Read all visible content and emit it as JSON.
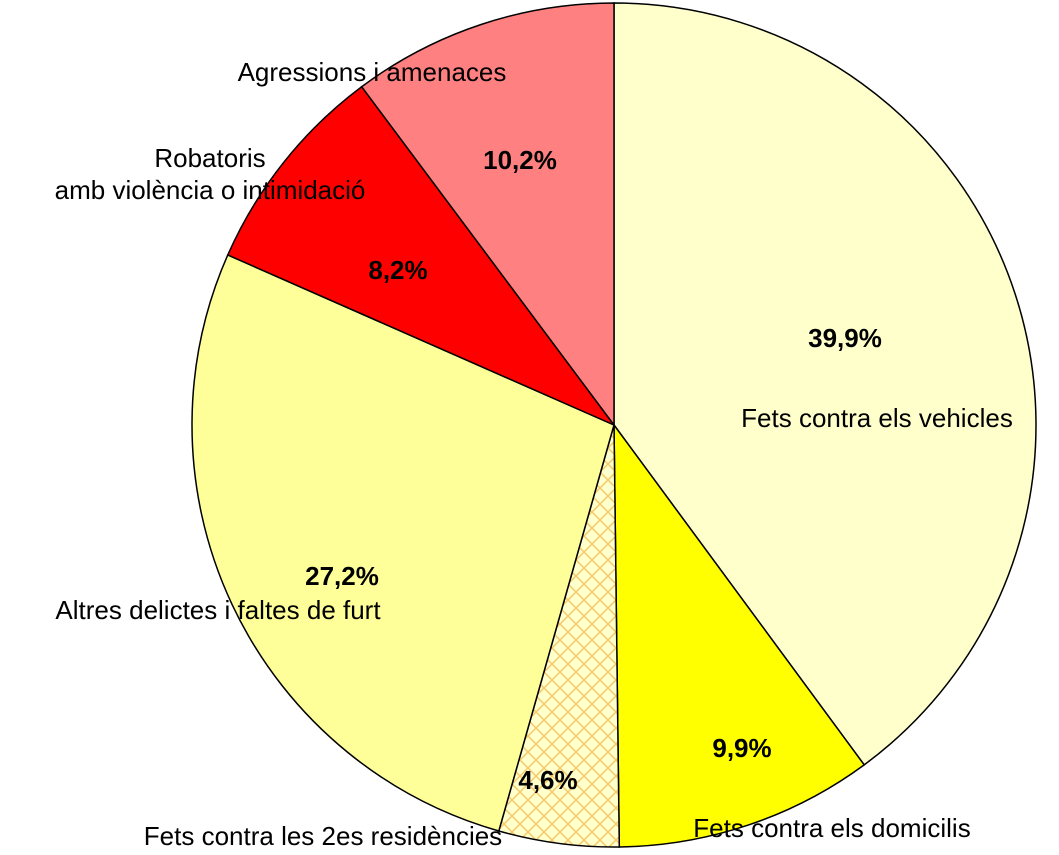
{
  "chart_data": {
    "type": "pie",
    "categories": [
      "Fets contra els vehicles",
      "Fets contra els domicilis",
      "Fets contra les 2es residències",
      "Altres delictes i faltes de furt",
      "Robatoris\namb violència o intimidació",
      "Agressions i amenaces"
    ],
    "values": [
      39.9,
      9.9,
      4.6,
      27.2,
      8.2,
      10.2
    ],
    "value_labels": [
      "39,9%",
      "9,9%",
      "4,6%",
      "27,2%",
      "8,2%",
      "10,2%"
    ],
    "colors": [
      "#FFFFCC",
      "#FFFF00",
      "#FFFFCC",
      "#FFFF99",
      "#FF0000",
      "#FF8080"
    ],
    "patterns": [
      null,
      null,
      "crosshatch",
      null,
      null,
      null
    ]
  }
}
